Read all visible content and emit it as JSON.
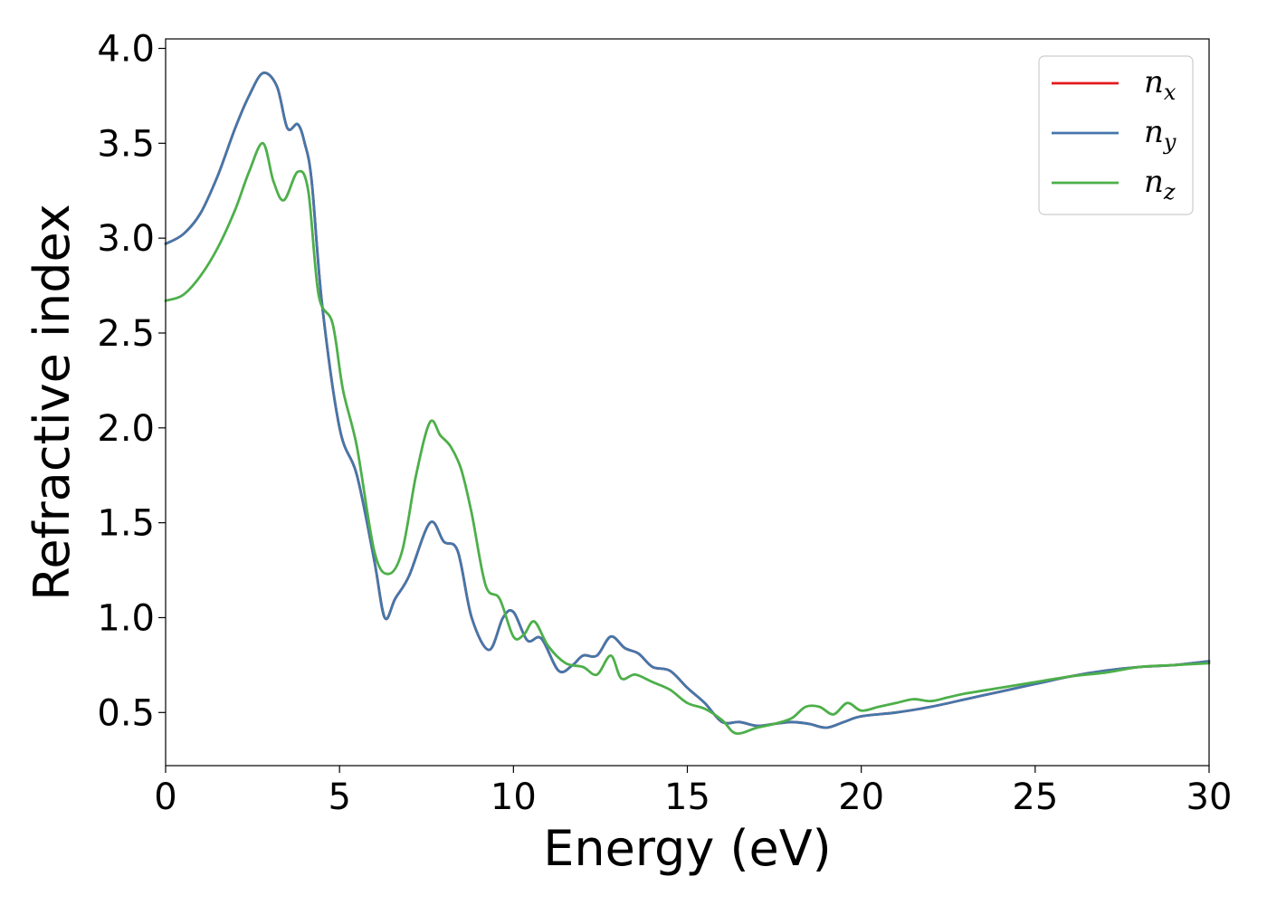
{
  "chart_data": {
    "type": "line",
    "xlabel": "Energy (eV)",
    "ylabel": "Refractive index",
    "xlim": [
      0,
      30
    ],
    "ylim": [
      0.22,
      4.05
    ],
    "xticks": [
      0,
      5,
      10,
      15,
      20,
      25,
      30
    ],
    "yticks": [
      0.5,
      1.0,
      1.5,
      2.0,
      2.5,
      3.0,
      3.5,
      4.0
    ],
    "xtick_labels": [
      "0",
      "5",
      "10",
      "15",
      "20",
      "25",
      "30"
    ],
    "ytick_labels": [
      "0.5",
      "1.0",
      "1.5",
      "2.0",
      "2.5",
      "3.0",
      "3.5",
      "4.0"
    ],
    "grid": false,
    "legend_position": "top-right",
    "series": [
      {
        "name": "n_x",
        "label_base": "n",
        "label_sub": "x",
        "color": "#e41a1c",
        "x": [
          0,
          0.5,
          1.0,
          1.5,
          2.0,
          2.4,
          2.8,
          3.2,
          3.5,
          3.8,
          4.0,
          4.2,
          4.5,
          5.0,
          5.5,
          6.0,
          6.3,
          6.6,
          7.0,
          7.6,
          8.0,
          8.4,
          8.8,
          9.3,
          9.7,
          10.0,
          10.4,
          10.8,
          11.3,
          11.7,
          12.0,
          12.4,
          12.8,
          13.2,
          13.6,
          14.0,
          14.5,
          15.0,
          15.5,
          16.0,
          16.5,
          17.0,
          17.5,
          18.0,
          18.5,
          19.0,
          19.5,
          20.0,
          21.0,
          22.0,
          23.0,
          24.0,
          25.0,
          26.0,
          27.0,
          28.0,
          29.0,
          30.0
        ],
        "values": [
          2.97,
          3.02,
          3.13,
          3.33,
          3.58,
          3.75,
          3.87,
          3.8,
          3.58,
          3.6,
          3.5,
          3.3,
          2.65,
          2.0,
          1.75,
          1.3,
          1.0,
          1.1,
          1.22,
          1.5,
          1.4,
          1.35,
          1.0,
          0.83,
          1.0,
          1.03,
          0.88,
          0.89,
          0.72,
          0.75,
          0.8,
          0.8,
          0.9,
          0.84,
          0.81,
          0.74,
          0.72,
          0.63,
          0.55,
          0.45,
          0.45,
          0.43,
          0.44,
          0.45,
          0.44,
          0.42,
          0.45,
          0.48,
          0.5,
          0.53,
          0.57,
          0.61,
          0.65,
          0.69,
          0.72,
          0.74,
          0.75,
          0.77
        ]
      },
      {
        "name": "n_y",
        "label_base": "n",
        "label_sub": "y",
        "color": "#4477aa",
        "x": [
          0,
          0.5,
          1.0,
          1.5,
          2.0,
          2.4,
          2.8,
          3.2,
          3.5,
          3.8,
          4.0,
          4.2,
          4.5,
          5.0,
          5.5,
          6.0,
          6.3,
          6.6,
          7.0,
          7.6,
          8.0,
          8.4,
          8.8,
          9.3,
          9.7,
          10.0,
          10.4,
          10.8,
          11.3,
          11.7,
          12.0,
          12.4,
          12.8,
          13.2,
          13.6,
          14.0,
          14.5,
          15.0,
          15.5,
          16.0,
          16.5,
          17.0,
          17.5,
          18.0,
          18.5,
          19.0,
          19.5,
          20.0,
          21.0,
          22.0,
          23.0,
          24.0,
          25.0,
          26.0,
          27.0,
          28.0,
          29.0,
          30.0
        ],
        "values": [
          2.97,
          3.02,
          3.13,
          3.33,
          3.58,
          3.75,
          3.87,
          3.8,
          3.58,
          3.6,
          3.5,
          3.3,
          2.65,
          2.0,
          1.75,
          1.3,
          1.0,
          1.1,
          1.22,
          1.5,
          1.4,
          1.35,
          1.0,
          0.83,
          1.0,
          1.03,
          0.88,
          0.89,
          0.72,
          0.75,
          0.8,
          0.8,
          0.9,
          0.84,
          0.81,
          0.74,
          0.72,
          0.63,
          0.55,
          0.45,
          0.45,
          0.43,
          0.44,
          0.45,
          0.44,
          0.42,
          0.45,
          0.48,
          0.5,
          0.53,
          0.57,
          0.61,
          0.65,
          0.69,
          0.72,
          0.74,
          0.75,
          0.77
        ]
      },
      {
        "name": "n_z",
        "label_base": "n",
        "label_sub": "z",
        "color": "#4daf4a",
        "x": [
          0,
          0.5,
          1.0,
          1.5,
          2.0,
          2.4,
          2.8,
          3.1,
          3.4,
          3.8,
          4.1,
          4.4,
          4.8,
          5.1,
          5.5,
          6.0,
          6.4,
          6.8,
          7.2,
          7.6,
          7.9,
          8.2,
          8.5,
          8.8,
          9.2,
          9.6,
          10.0,
          10.3,
          10.6,
          11.0,
          11.5,
          12.0,
          12.4,
          12.8,
          13.1,
          13.5,
          14.0,
          14.5,
          15.0,
          15.5,
          16.0,
          16.4,
          17.0,
          17.5,
          18.0,
          18.4,
          18.8,
          19.2,
          19.6,
          20.0,
          20.5,
          21.0,
          21.5,
          22.0,
          22.5,
          23.0,
          24.0,
          25.0,
          26.0,
          27.0,
          28.0,
          29.0,
          30.0
        ],
        "values": [
          2.67,
          2.7,
          2.8,
          2.95,
          3.15,
          3.35,
          3.5,
          3.3,
          3.2,
          3.35,
          3.25,
          2.7,
          2.55,
          2.2,
          1.9,
          1.35,
          1.23,
          1.35,
          1.75,
          2.03,
          1.96,
          1.9,
          1.78,
          1.55,
          1.17,
          1.1,
          0.9,
          0.91,
          0.98,
          0.85,
          0.76,
          0.74,
          0.7,
          0.8,
          0.68,
          0.7,
          0.66,
          0.62,
          0.55,
          0.52,
          0.46,
          0.39,
          0.42,
          0.44,
          0.47,
          0.53,
          0.53,
          0.49,
          0.55,
          0.51,
          0.53,
          0.55,
          0.57,
          0.56,
          0.58,
          0.6,
          0.63,
          0.66,
          0.69,
          0.71,
          0.74,
          0.75,
          0.76
        ]
      }
    ]
  }
}
